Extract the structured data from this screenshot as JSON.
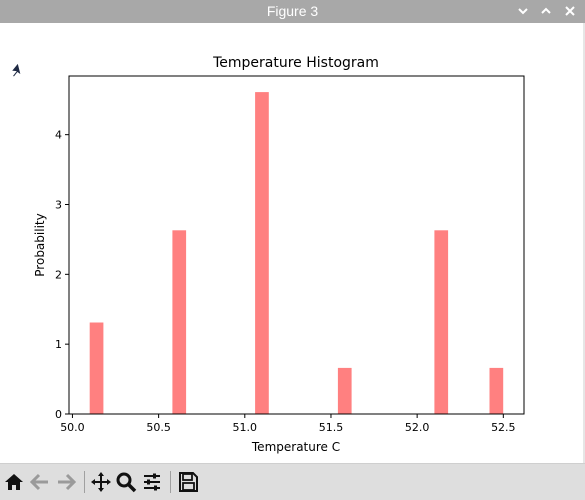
{
  "window": {
    "title": "Figure 3",
    "controls": [
      "chevron-down-icon",
      "chevron-up-icon",
      "close-icon"
    ]
  },
  "toolbar": {
    "buttons": [
      "home-icon",
      "back-arrow-icon",
      "forward-arrow-icon",
      "pan-icon",
      "zoom-icon",
      "configure-subplots-icon",
      "save-icon"
    ]
  },
  "colors": {
    "bar": "#ff8080",
    "titlebar": "#a8a8a8",
    "toolbar": "#dedede"
  },
  "chart_data": {
    "type": "bar",
    "title": "Temperature Histogram",
    "xlabel": "Temperature C",
    "ylabel": "Probability",
    "xlim": [
      49.98,
      52.62
    ],
    "ylim": [
      0,
      4.84
    ],
    "xticks": [
      50.0,
      50.5,
      51.0,
      51.5,
      52.0,
      52.5
    ],
    "xtick_labels": [
      "50.0",
      "50.5",
      "51.0",
      "51.5",
      "52.0",
      "52.5"
    ],
    "yticks": [
      0,
      1,
      2,
      3,
      4
    ],
    "ytick_labels": [
      "0",
      "1",
      "2",
      "3",
      "4"
    ],
    "bin_width": 0.0797,
    "bins": [
      {
        "x": 50.1,
        "value": 1.31
      },
      {
        "x": 50.58,
        "value": 2.63
      },
      {
        "x": 51.06,
        "value": 4.61
      },
      {
        "x": 51.54,
        "value": 0.66
      },
      {
        "x": 52.1,
        "value": 2.63
      },
      {
        "x": 52.42,
        "value": 0.66
      }
    ],
    "grid": false,
    "legend": "none"
  }
}
